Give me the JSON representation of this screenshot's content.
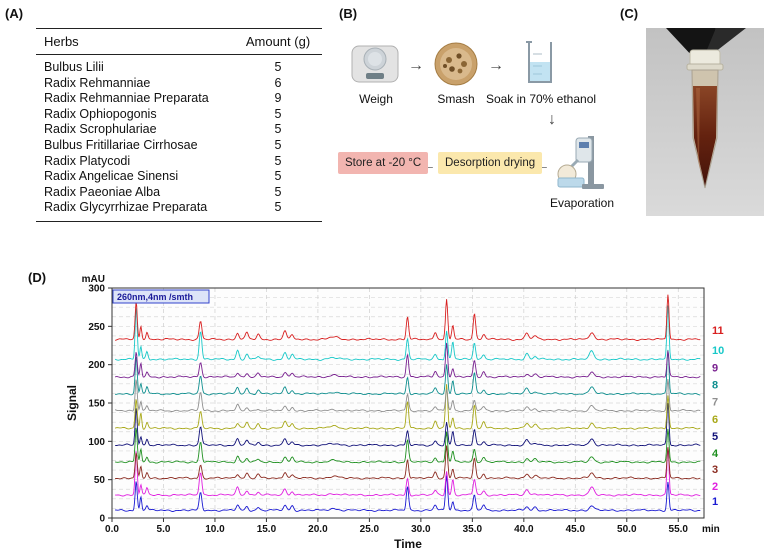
{
  "panel_a": {
    "label": "(A)",
    "table": {
      "headers": [
        "Herbs",
        "Amount (g)"
      ],
      "rows": [
        [
          "Bulbus Lilii",
          "5"
        ],
        [
          "Radix Rehmanniae",
          "6"
        ],
        [
          "Radix Rehmanniae Preparata",
          "9"
        ],
        [
          "Radix Ophiopogonis",
          "5"
        ],
        [
          "Radix Scrophulariae",
          "5"
        ],
        [
          "Bulbus Fritillariae Cirrhosae",
          "5"
        ],
        [
          "Radix Platycodi",
          "5"
        ],
        [
          "Radix Angelicae Sinensi",
          "5"
        ],
        [
          "Radix Paeoniae Alba",
          "5"
        ],
        [
          "Radix Glycyrrhizae Preparata",
          "5"
        ]
      ]
    }
  },
  "panel_b": {
    "label": "(B)",
    "steps": {
      "weigh": "Weigh",
      "smash": "Smash",
      "soak": "Soak in 70% ethanol",
      "evaporation": "Evaporation",
      "desorption": "Desorption drying",
      "store": "Store at -20 °C"
    },
    "arrows": {
      "right": "→",
      "down": "↓",
      "left": "←"
    },
    "colors": {
      "store_bg": "#f2b5b0",
      "desorption_bg": "#fbe8ad"
    }
  },
  "panel_c": {
    "label": "(C)"
  },
  "panel_d": {
    "label": "(D)",
    "chart_data": {
      "type": "line",
      "title": "",
      "xlabel": "Time",
      "ylabel": "Signal",
      "x_unit": "min",
      "y_unit": "mAU",
      "annotation": "260nm,4nm /smth",
      "annotation_color": "#1a1a99",
      "xlim": [
        0,
        57.5
      ],
      "ylim": [
        0,
        300
      ],
      "x_ticks": [
        0.0,
        5.0,
        10.0,
        15.0,
        20.0,
        25.0,
        30.0,
        35.0,
        40.0,
        45.0,
        50.0,
        55.0
      ],
      "y_ticks": [
        0,
        50,
        100,
        150,
        200,
        250,
        300
      ],
      "grid": "dashed",
      "peaks": [
        {
          "t": 2.35,
          "h": 52,
          "w": 0.14
        },
        {
          "t": 2.8,
          "h": 18,
          "w": 0.12
        },
        {
          "t": 3.4,
          "h": 9,
          "w": 0.15
        },
        {
          "t": 8.6,
          "h": 28,
          "w": 0.18
        },
        {
          "t": 12.2,
          "h": 9,
          "w": 0.2
        },
        {
          "t": 13.1,
          "h": 7,
          "w": 0.2
        },
        {
          "t": 14.2,
          "h": 5,
          "w": 0.2
        },
        {
          "t": 16.8,
          "h": 9,
          "w": 0.22
        },
        {
          "t": 17.5,
          "h": 6,
          "w": 0.2
        },
        {
          "t": 21.5,
          "h": 2.5,
          "w": 0.6
        },
        {
          "t": 28.7,
          "h": 30,
          "w": 0.16
        },
        {
          "t": 31.4,
          "h": 8,
          "w": 0.2
        },
        {
          "t": 32.5,
          "h": 46,
          "w": 0.15
        },
        {
          "t": 33.1,
          "h": 18,
          "w": 0.15
        },
        {
          "t": 35.2,
          "h": 26,
          "w": 0.17
        },
        {
          "t": 36.1,
          "h": 7,
          "w": 0.2
        },
        {
          "t": 40.3,
          "h": 7,
          "w": 0.25
        },
        {
          "t": 41.1,
          "h": 4,
          "w": 0.25
        },
        {
          "t": 46.6,
          "h": 9,
          "w": 0.3
        },
        {
          "t": 54.0,
          "h": 56,
          "w": 0.14
        }
      ],
      "series": [
        {
          "name": "1",
          "color": "#1a1ad2",
          "baseline": 10,
          "scale": 0.85
        },
        {
          "name": "2",
          "color": "#e020e0",
          "baseline": 30,
          "scale": 0.9
        },
        {
          "name": "3",
          "color": "#8b2b20",
          "baseline": 52,
          "scale": 0.8
        },
        {
          "name": "4",
          "color": "#1f9020",
          "baseline": 73,
          "scale": 0.85
        },
        {
          "name": "5",
          "color": "#101078",
          "baseline": 95,
          "scale": 0.8
        },
        {
          "name": "6",
          "color": "#a8a818",
          "baseline": 117,
          "scale": 1.0
        },
        {
          "name": "7",
          "color": "#8f8f8f",
          "baseline": 140,
          "scale": 0.7
        },
        {
          "name": "8",
          "color": "#0f8f8f",
          "baseline": 162,
          "scale": 0.9
        },
        {
          "name": "9",
          "color": "#781f8f",
          "baseline": 184,
          "scale": 0.8
        },
        {
          "name": "10",
          "color": "#18c8c8",
          "baseline": 207,
          "scale": 1.05
        },
        {
          "name": "11",
          "color": "#d81f1f",
          "baseline": 233,
          "scale": 1.05
        }
      ]
    }
  }
}
